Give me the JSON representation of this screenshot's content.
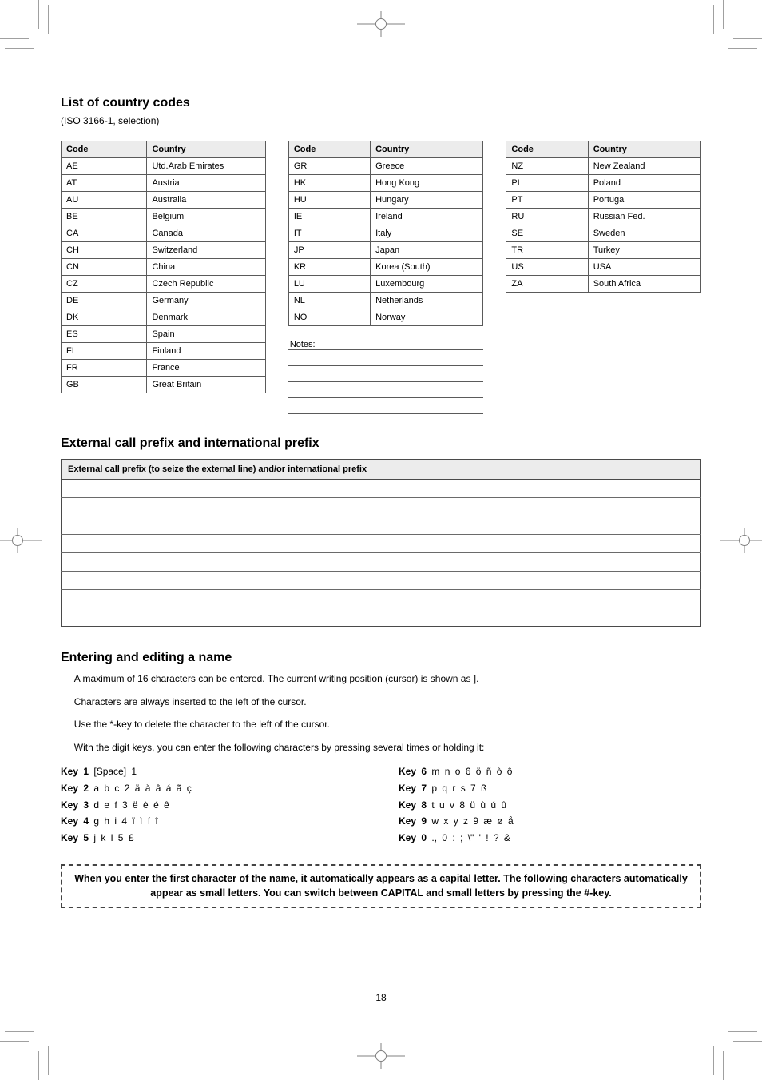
{
  "page_number": "18",
  "section1": {
    "title": "List of country codes",
    "subtitle": "(ISO 3166-1, selection)",
    "table1": {
      "headers": [
        "Code",
        "Country"
      ],
      "rows": [
        [
          "AE",
          "Utd.Arab Emirates"
        ],
        [
          "AT",
          "Austria"
        ],
        [
          "AU",
          "Australia"
        ],
        [
          "BE",
          "Belgium"
        ],
        [
          "CA",
          "Canada"
        ],
        [
          "CH",
          "Switzerland"
        ],
        [
          "CN",
          "China"
        ],
        [
          "CZ",
          "Czech Republic"
        ],
        [
          "DE",
          "Germany"
        ],
        [
          "DK",
          "Denmark"
        ],
        [
          "ES",
          "Spain"
        ],
        [
          "FI",
          "Finland"
        ],
        [
          "FR",
          "France"
        ],
        [
          "GB",
          "Great Britain"
        ]
      ]
    },
    "table2": {
      "headers": [
        "Code",
        "Country"
      ],
      "rows": [
        [
          "GR",
          "Greece"
        ],
        [
          "HK",
          "Hong Kong"
        ],
        [
          "HU",
          "Hungary"
        ],
        [
          "IE",
          "Ireland"
        ],
        [
          "IT",
          "Italy"
        ],
        [
          "JP",
          "Japan"
        ],
        [
          "KR",
          "Korea (South)"
        ],
        [
          "LU",
          "Luxembourg"
        ],
        [
          "NL",
          "Netherlands"
        ],
        [
          "NO",
          "Norway"
        ]
      ]
    },
    "table3": {
      "headers": [
        "Code",
        "Country"
      ],
      "rows": [
        [
          "NZ",
          "New Zealand"
        ],
        [
          "PL",
          "Poland"
        ],
        [
          "PT",
          "Portugal"
        ],
        [
          "RU",
          "Russian Fed."
        ],
        [
          "SE",
          "Sweden"
        ],
        [
          "TR",
          "Turkey"
        ],
        [
          "US",
          "USA"
        ],
        [
          "ZA",
          "South Africa"
        ]
      ]
    },
    "notes_label": "Notes:"
  },
  "section2": {
    "title": "External call prefix and international prefix",
    "table": {
      "header": "External call prefix (to seize the external line) and/or international prefix",
      "row_count": 8
    }
  },
  "section3": {
    "title": "Entering and editing a name",
    "paragraphs": [
      "A maximum of 16 characters can be entered. The current writing position (cursor) is shown as ].",
      "Characters are always inserted to the left of the cursor.",
      "Use the *-key to delete the character to the left of the cursor.",
      "With the digit keys, you can enter the following characters by pressing several times or holding it:"
    ],
    "keymap": [
      {
        "key": "Key 1",
        "chars": "[Space] 1"
      },
      {
        "key": "Key 2",
        "chars": "a b c 2 ä à â á ã ç"
      },
      {
        "key": "Key 3",
        "chars": "d e f 3 ë è é ê"
      },
      {
        "key": "Key 4",
        "chars": "g h i 4 ï ì í î"
      },
      {
        "key": "Key 5",
        "chars": "j k l 5 £"
      },
      {
        "key": "Key 6",
        "chars": "m n o 6 ö ñ ò ô"
      },
      {
        "key": "Key 7",
        "chars": "p q r s 7 ß"
      },
      {
        "key": "Key 8",
        "chars": "t u v 8 ü ù ú û"
      },
      {
        "key": "Key 9",
        "chars": "w x y z 9 æ ø å"
      },
      {
        "key": "Key 0",
        "chars": "., 0 : ; \\\" ' ! ? &"
      }
    ]
  },
  "callout_box": "When you enter the first character of the name, it automatically appears as a capital letter. The following characters automatically appear as small letters. You can switch between CAPITAL and small letters by pressing the #-key."
}
